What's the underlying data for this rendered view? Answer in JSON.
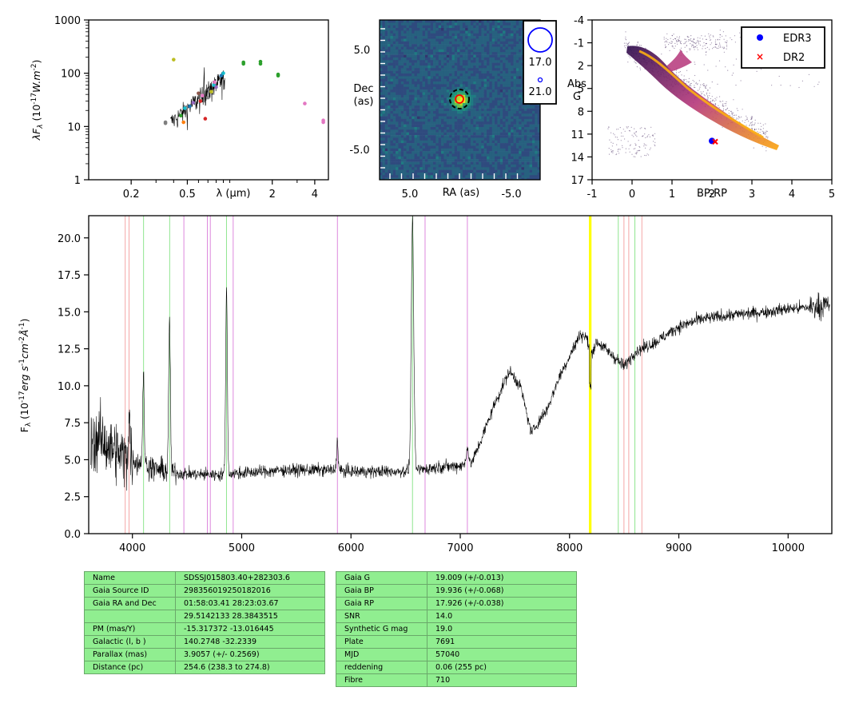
{
  "chart_data": [
    {
      "type": "scatter",
      "panel": "sed",
      "ylabel": "λF_λ (10^-17 W.m^-2)",
      "xlabel": "λ (μm)",
      "x_scale": "log",
      "y_scale": "log",
      "xlim": [
        0.1,
        5.0
      ],
      "ylim": [
        1,
        1000
      ],
      "x_ticks": [
        "0.2",
        "0.5",
        "2",
        "4"
      ],
      "y_ticks": [
        "1",
        "10",
        "100",
        "1000"
      ],
      "points": [
        {
          "x": 0.35,
          "y": 12,
          "color": "#7f7f7f"
        },
        {
          "x": 0.35,
          "y": 11.5,
          "color": "#7f7f7f"
        },
        {
          "x": 0.4,
          "y": 180,
          "color": "#bcbd22"
        },
        {
          "x": 0.45,
          "y": 16,
          "color": "#2ca02c"
        },
        {
          "x": 0.47,
          "y": 12,
          "color": "#ff7f0e"
        },
        {
          "x": 0.48,
          "y": 22,
          "color": "#17becf"
        },
        {
          "x": 0.52,
          "y": 24,
          "color": "#1f77b4"
        },
        {
          "x": 0.55,
          "y": 28,
          "color": "#9467bd"
        },
        {
          "x": 0.6,
          "y": 42,
          "color": "#8c564b"
        },
        {
          "x": 0.62,
          "y": 30,
          "color": "#d62728"
        },
        {
          "x": 0.64,
          "y": 38,
          "color": "#e377c2"
        },
        {
          "x": 0.67,
          "y": 14,
          "color": "#d62728"
        },
        {
          "x": 0.7,
          "y": 35,
          "color": "#7f7f7f"
        },
        {
          "x": 0.74,
          "y": 45,
          "color": "#bcbd22"
        },
        {
          "x": 0.77,
          "y": 60,
          "color": "#17becf"
        },
        {
          "x": 0.78,
          "y": 68,
          "color": "#e377c2"
        },
        {
          "x": 0.8,
          "y": 55,
          "color": "#9467bd"
        },
        {
          "x": 0.87,
          "y": 90,
          "color": "#1f77b4"
        },
        {
          "x": 0.9,
          "y": 100,
          "color": "#17becf"
        },
        {
          "x": 1.25,
          "y": 150,
          "color": "#2ca02c"
        },
        {
          "x": 1.25,
          "y": 160,
          "color": "#2ca02c"
        },
        {
          "x": 1.65,
          "y": 165,
          "color": "#2ca02c"
        },
        {
          "x": 1.65,
          "y": 150,
          "color": "#2ca02c"
        },
        {
          "x": 2.2,
          "y": 95,
          "color": "#2ca02c"
        },
        {
          "x": 2.2,
          "y": 90,
          "color": "#2ca02c"
        },
        {
          "x": 3.4,
          "y": 27,
          "color": "#e377c2"
        },
        {
          "x": 4.6,
          "y": 13,
          "color": "#e377c2"
        },
        {
          "x": 4.6,
          "y": 12,
          "color": "#e377c2"
        }
      ]
    },
    {
      "type": "heatmap",
      "panel": "image_cutout",
      "xlabel": "RA (as)",
      "ylabel": "Dec (as)",
      "x_ticks": [
        "5.0",
        "-5.0"
      ],
      "y_ticks": [
        "5.0",
        "-5.0"
      ],
      "legend": [
        {
          "label": "17.0",
          "marker": "large-blue-circle"
        },
        {
          "label": "21.0",
          "marker": "small-blue-circle"
        }
      ]
    },
    {
      "type": "scatter",
      "panel": "hr_diagram",
      "xlabel": "BP-RP",
      "ylabel": "Abs G",
      "xlim": [
        -1,
        5
      ],
      "ylim": [
        17,
        -4
      ],
      "x_ticks": [
        "-1",
        "0",
        "1",
        "2",
        "3",
        "4",
        "5"
      ],
      "y_ticks": [
        "-4",
        "-1",
        "2",
        "5",
        "8",
        "11",
        "14",
        "17"
      ],
      "series": [
        {
          "name": "EDR3",
          "marker": "dot",
          "color": "#0000ff",
          "x": [
            2.0
          ],
          "y": [
            11.9
          ]
        },
        {
          "name": "DR2",
          "marker": "x",
          "color": "#ff0000",
          "x": [
            2.08
          ],
          "y": [
            12.0
          ]
        }
      ],
      "legend_position": "top-right"
    },
    {
      "type": "line",
      "panel": "spectrum",
      "ylabel": "F_λ (10^-17 erg s^-1 cm^-2 Å^-1)",
      "xlim": [
        3600,
        10400
      ],
      "ylim": [
        0,
        21.5
      ],
      "x_ticks": [
        "4000",
        "5000",
        "6000",
        "7000",
        "8000",
        "9000",
        "10000"
      ],
      "y_ticks": [
        "0.0",
        "2.5",
        "5.0",
        "7.5",
        "10.0",
        "12.5",
        "15.0",
        "17.5",
        "20.0"
      ],
      "continuum_x": [
        3620,
        3700,
        3800,
        3900,
        4000,
        4200,
        4400,
        4600,
        4800,
        5000,
        5200,
        5400,
        5600,
        5800,
        6000,
        6200,
        6400,
        6600,
        6800,
        7000,
        7100,
        7200,
        7300,
        7450,
        7550,
        7650,
        7800,
        7900,
        8000,
        8100,
        8150,
        8200,
        8250,
        8400,
        8500,
        8600,
        8800,
        9000,
        9200,
        9500,
        9800,
        10000,
        10200,
        10380
      ],
      "continuum_y": [
        6.0,
        6.5,
        5.8,
        5.3,
        5.0,
        4.4,
        4.1,
        4.0,
        4.0,
        4.1,
        4.2,
        4.3,
        4.3,
        4.3,
        4.2,
        4.2,
        4.2,
        4.3,
        4.5,
        4.6,
        4.7,
        6.5,
        8.5,
        11.0,
        10.0,
        6.8,
        8.5,
        10.5,
        12.0,
        13.5,
        13.3,
        12.2,
        13.0,
        12.0,
        11.3,
        12.3,
        13.0,
        14.0,
        14.5,
        14.8,
        15.0,
        15.2,
        15.3,
        15.5
      ],
      "emission_lines": [
        {
          "x": 3970,
          "peak": 8.0
        },
        {
          "x": 4101,
          "peak": 10.5
        },
        {
          "x": 4340,
          "peak": 14.5
        },
        {
          "x": 4861,
          "peak": 16.5
        },
        {
          "x": 5875,
          "peak": 6.2
        },
        {
          "x": 6563,
          "peak": 21.2
        },
        {
          "x": 7065,
          "peak": 5.8
        }
      ],
      "marker_lines": [
        {
          "x": 3934,
          "color": "#f4a6a6"
        },
        {
          "x": 3969,
          "color": "#f4a6a6"
        },
        {
          "x": 4102,
          "color": "#8fe58f"
        },
        {
          "x": 4341,
          "color": "#8fe58f"
        },
        {
          "x": 4471,
          "color": "#dd88dd"
        },
        {
          "x": 4686,
          "color": "#dd88dd"
        },
        {
          "x": 4713,
          "color": "#dd88dd"
        },
        {
          "x": 4861,
          "color": "#8fe58f"
        },
        {
          "x": 4922,
          "color": "#dd88dd"
        },
        {
          "x": 5876,
          "color": "#dd88dd"
        },
        {
          "x": 6563,
          "color": "#8fe58f"
        },
        {
          "x": 6678,
          "color": "#dd88dd"
        },
        {
          "x": 7065,
          "color": "#dd88dd"
        },
        {
          "x": 8183,
          "color": "#ffff00"
        },
        {
          "x": 8195,
          "color": "#ffff00"
        },
        {
          "x": 8446,
          "color": "#8fe58f"
        },
        {
          "x": 8498,
          "color": "#f4a6a6"
        },
        {
          "x": 8542,
          "color": "#f4a6a6"
        },
        {
          "x": 8598,
          "color": "#8fe58f"
        },
        {
          "x": 8662,
          "color": "#f4a6a6"
        }
      ]
    }
  ],
  "labels": {
    "sed_y": "λF",
    "sed_y_sub": "λ",
    "sed_y_units": " (10",
    "sed_y_exp": "-17",
    "sed_y_tail": "W.m",
    "sed_y_exp2": "-2",
    "sed_x": "λ (μm)",
    "img_x": "RA (as)",
    "img_y1": "Dec",
    "img_y2": "(as)",
    "hr_x": "BP-RP",
    "hr_y1": "Abs",
    "hr_y2": "G",
    "spec_y": "F",
    "spec_y_sub": "λ",
    "spec_y_units": " (10",
    "spec_y_exp": "-17",
    "spec_y_tail": "erg s",
    "spec_y_exp2": "-1",
    "spec_y_tail2": "cm",
    "spec_y_exp3": "-2",
    "spec_y_tail3": "Å",
    "spec_y_exp4": "-1",
    "spec_y_close": ")"
  },
  "table_left": [
    {
      "key": "Name",
      "value": "SDSSJ015803.40+282303.6"
    },
    {
      "key": "Gaia Source ID",
      "value": "298356019250182016"
    },
    {
      "key": "Gaia RA and Dec",
      "value": "01:58:03.41    28:23:03.67"
    },
    {
      "key": "",
      "value": "29.5142133    28.3843515"
    },
    {
      "key": "PM (mas/Y)",
      "value": "-15.317372    -13.016445"
    },
    {
      "key": "Galactic (l, b )",
      "value": "140.2748    -32.2339"
    },
    {
      "key": "Parallax (mas)",
      "value": "3.9057 (+/- 0.2569)"
    },
    {
      "key": "Distance (pc)",
      "value": "254.6 (238.3 to 274.8)"
    }
  ],
  "table_right": [
    {
      "key": "Gaia G",
      "value": "19.009 (+/-0.013)"
    },
    {
      "key": "Gaia BP",
      "value": "19.936 (+/-0.068)"
    },
    {
      "key": "Gaia RP",
      "value": "17.926 (+/-0.038)"
    },
    {
      "key": "SNR",
      "value": "14.0"
    },
    {
      "key": "Synthetic G mag",
      "value": "19.0"
    },
    {
      "key": "Plate",
      "value": "7691"
    },
    {
      "key": "MJD",
      "value": "57040"
    },
    {
      "key": "reddening",
      "value": "0.06 (255 pc)"
    },
    {
      "key": "Fibre",
      "value": "710"
    }
  ]
}
